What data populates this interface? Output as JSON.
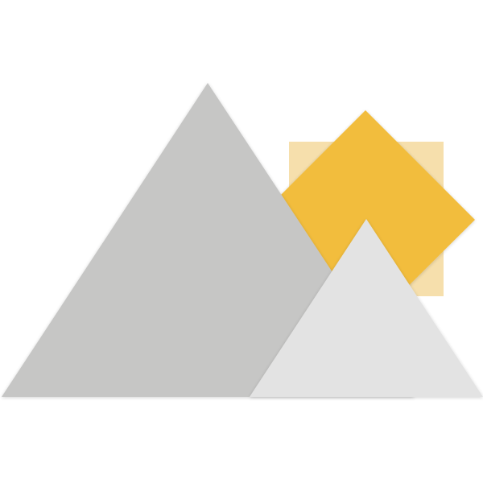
{
  "illustration": {
    "icon": "mountains-with-sun-icon",
    "colors": {
      "background": "#ffffff",
      "big_mountain": "#c6c6c5",
      "small_mountain": "#e3e3e3",
      "sun_diamond": "#f2bd3e",
      "sun_square_back": "#f6dfac"
    }
  }
}
